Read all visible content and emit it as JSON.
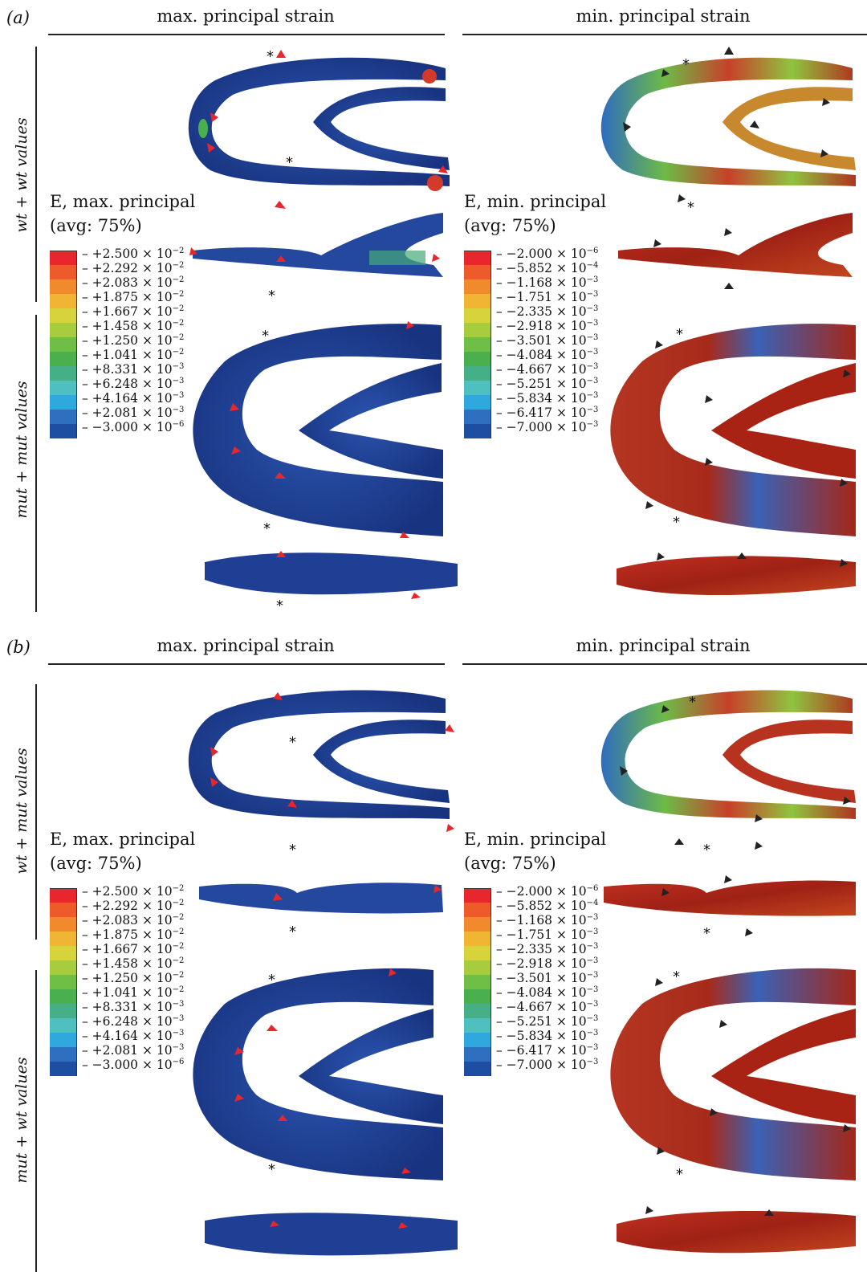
{
  "panels": [
    {
      "label": "(a)",
      "col_titles": {
        "max": "max. principal strain",
        "min": "min. principal strain"
      },
      "rows": [
        "wt + wt values",
        "mut + mut values"
      ],
      "legend_max": {
        "title": "E, max. principal",
        "subtitle": "(avg: 75%)",
        "colors": [
          "#e8262b",
          "#ee5a2a",
          "#f08a2c",
          "#f0b533",
          "#d7d33a",
          "#a7cd3e",
          "#6fbe45",
          "#49b04d",
          "#45b088",
          "#4fbfc0",
          "#2ea8dd",
          "#2e6fbf",
          "#1e4ea1"
        ],
        "ticks": [
          "+2.500 × 10^−2",
          "+2.292 × 10^−2",
          "+2.083 × 10^−2",
          "+1.875 × 10^−2",
          "+1.667 × 10^−2",
          "+1.458 × 10^−2",
          "+1.250 × 10^−2",
          "+1.041 × 10^−2",
          "+8.331 × 10^−3",
          "+6.248 × 10^−3",
          "+4.164 × 10^−3",
          "+2.081 × 10^−3",
          "−3.000 × 10^−6"
        ]
      },
      "legend_min": {
        "title": "E, min. principal",
        "subtitle": "(avg: 75%)",
        "colors": [
          "#e8262b",
          "#ee5a2a",
          "#f08a2c",
          "#f0b533",
          "#d7d33a",
          "#a7cd3e",
          "#6fbe45",
          "#49b04d",
          "#45b088",
          "#4fbfc0",
          "#2ea8dd",
          "#2e6fbf",
          "#1e4ea1"
        ],
        "ticks": [
          "−2.000 × 10^−6",
          "−5.852 × 10^−4",
          "−1.168 × 10^−3",
          "−1.751 × 10^−3",
          "−2.335 × 10^−3",
          "−2.918 × 10^−3",
          "−3.501 × 10^−3",
          "−4.084 × 10^−3",
          "−4.667 × 10^−3",
          "−5.251 × 10^−3",
          "−5.834 × 10^−3",
          "−6.417 × 10^−3",
          "−7.000 × 10^−3"
        ]
      }
    },
    {
      "label": "(b)",
      "col_titles": {
        "max": "max. principal strain",
        "min": "min. principal strain"
      },
      "rows": [
        "wt + mut values",
        "mut + wt values"
      ],
      "legend_max": {
        "title": "E, max. principal",
        "subtitle": "(avg: 75%)",
        "colors": [
          "#e8262b",
          "#ee5a2a",
          "#f08a2c",
          "#f0b533",
          "#d7d33a",
          "#a7cd3e",
          "#6fbe45",
          "#49b04d",
          "#45b088",
          "#4fbfc0",
          "#2ea8dd",
          "#2e6fbf",
          "#1e4ea1"
        ],
        "ticks": [
          "+2.500 × 10^−2",
          "+2.292 × 10^−2",
          "+2.083 × 10^−2",
          "+1.875 × 10^−2",
          "+1.667 × 10^−2",
          "+1.458 × 10^−2",
          "+1.250 × 10^−2",
          "+1.041 × 10^−2",
          "+8.331 × 10^−3",
          "+6.248 × 10^−3",
          "+4.164 × 10^−3",
          "+2.081 × 10^−3",
          "−3.000 × 10^−6"
        ]
      },
      "legend_min": {
        "title": "E, min. principal",
        "subtitle": "(avg: 75%)",
        "colors": [
          "#e8262b",
          "#ee5a2a",
          "#f08a2c",
          "#f0b533",
          "#d7d33a",
          "#a7cd3e",
          "#6fbe45",
          "#49b04d",
          "#45b088",
          "#4fbfc0",
          "#2ea8dd",
          "#2e6fbf",
          "#1e4ea1"
        ],
        "ticks": [
          "−2.000 × 10^−6",
          "−5.852 × 10^−4",
          "−1.168 × 10^−3",
          "−1.751 × 10^−3",
          "−2.335 × 10^−3",
          "−2.918 × 10^−3",
          "−3.501 × 10^−3",
          "−4.084 × 10^−3",
          "−4.667 × 10^−3",
          "−5.251 × 10^−3",
          "−5.834 × 10^−3",
          "−6.417 × 10^−3",
          "−7.000 × 10^−3"
        ]
      }
    }
  ],
  "marks": {
    "asterisk": "*"
  },
  "colors": {
    "max_map_base": "#1f3f95",
    "min_map_low": "#b82a1e",
    "arrow_red": "#e8262b",
    "arrow_black": "#222222"
  }
}
